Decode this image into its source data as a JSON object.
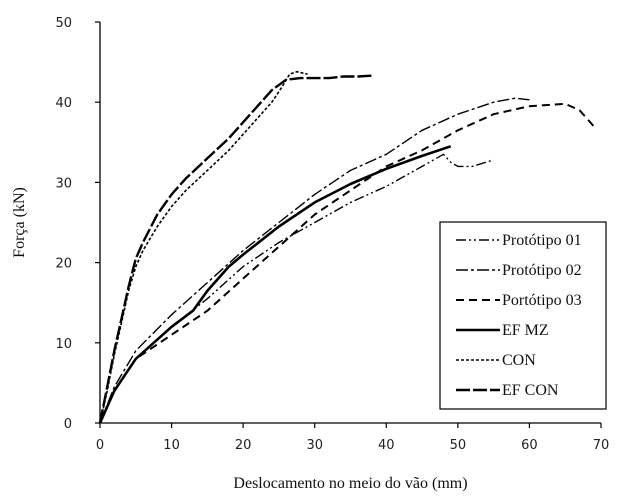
{
  "chart_data": {
    "type": "line",
    "title": "",
    "xlabel": "Deslocamento no meio do vão (mm)",
    "ylabel": "Força (kN)",
    "xlim": [
      0,
      70
    ],
    "ylim": [
      0,
      50
    ],
    "xticks": [
      0,
      10,
      20,
      30,
      40,
      50,
      60,
      70
    ],
    "yticks": [
      0,
      10,
      20,
      30,
      40,
      50
    ],
    "grid": false,
    "legend_position": "bottom-right",
    "series": [
      {
        "name": "Protótipo 01",
        "dash": "10,3,2,3,2,3",
        "width": 1.4,
        "points": [
          [
            0,
            0
          ],
          [
            2,
            4
          ],
          [
            5,
            8
          ],
          [
            10,
            12
          ],
          [
            15,
            15.5
          ],
          [
            20,
            19.5
          ],
          [
            25,
            22.5
          ],
          [
            30,
            25
          ],
          [
            35,
            27.5
          ],
          [
            40,
            29.5
          ],
          [
            45,
            32
          ],
          [
            47,
            33
          ],
          [
            48,
            33.5
          ],
          [
            49,
            32.5
          ],
          [
            50,
            32
          ],
          [
            52,
            32
          ],
          [
            55,
            32.8
          ]
        ]
      },
      {
        "name": "Protótipo 02",
        "dash": "12,3,3,3",
        "width": 1.4,
        "points": [
          [
            0,
            0
          ],
          [
            2,
            4.5
          ],
          [
            5,
            9
          ],
          [
            10,
            13.5
          ],
          [
            15,
            17.5
          ],
          [
            20,
            21.5
          ],
          [
            25,
            25
          ],
          [
            30,
            28.5
          ],
          [
            35,
            31.5
          ],
          [
            40,
            33.5
          ],
          [
            45,
            36.5
          ],
          [
            50,
            38.5
          ],
          [
            55,
            40
          ],
          [
            58,
            40.5
          ],
          [
            60,
            40.3
          ]
        ]
      },
      {
        "name": "Portótipo 03",
        "dash": "8,5",
        "width": 2,
        "points": [
          [
            0,
            0
          ],
          [
            2,
            4
          ],
          [
            5,
            8
          ],
          [
            10,
            11
          ],
          [
            15,
            14
          ],
          [
            20,
            18
          ],
          [
            25,
            22
          ],
          [
            30,
            26
          ],
          [
            35,
            29
          ],
          [
            40,
            32
          ],
          [
            45,
            34
          ],
          [
            50,
            36.5
          ],
          [
            55,
            38.5
          ],
          [
            60,
            39.5
          ],
          [
            65,
            39.8
          ],
          [
            67,
            39
          ],
          [
            69,
            37
          ]
        ]
      },
      {
        "name": "EF MZ",
        "dash": "",
        "width": 2.6,
        "points": [
          [
            0,
            0
          ],
          [
            2,
            4
          ],
          [
            5,
            8
          ],
          [
            10,
            12
          ],
          [
            13,
            14
          ],
          [
            15,
            16.5
          ],
          [
            18,
            19.5
          ],
          [
            20,
            21
          ],
          [
            25,
            24.5
          ],
          [
            30,
            27.5
          ],
          [
            35,
            29.8
          ],
          [
            40,
            31.7
          ],
          [
            45,
            33.3
          ],
          [
            49,
            34.5
          ]
        ]
      },
      {
        "name": "CON",
        "dash": "3,2",
        "width": 1.6,
        "points": [
          [
            0,
            0
          ],
          [
            1,
            4
          ],
          [
            2,
            8.5
          ],
          [
            3,
            12.5
          ],
          [
            4,
            16.5
          ],
          [
            5,
            19.5
          ],
          [
            6,
            21.5
          ],
          [
            8,
            24.5
          ],
          [
            10,
            27
          ],
          [
            12,
            29
          ],
          [
            15,
            31.5
          ],
          [
            18,
            34
          ],
          [
            20,
            36
          ],
          [
            22,
            38
          ],
          [
            24,
            40
          ],
          [
            25.5,
            42
          ],
          [
            26.5,
            43.5
          ],
          [
            27.5,
            43.8
          ],
          [
            29,
            43.5
          ]
        ]
      },
      {
        "name": "EF CON",
        "dash": "14,3",
        "width": 2.4,
        "points": [
          [
            0,
            0
          ],
          [
            1,
            4.5
          ],
          [
            2,
            9
          ],
          [
            3,
            13
          ],
          [
            4,
            17
          ],
          [
            5,
            20.5
          ],
          [
            6,
            22.5
          ],
          [
            8,
            26
          ],
          [
            10,
            28.5
          ],
          [
            12,
            30.5
          ],
          [
            15,
            33
          ],
          [
            18,
            35.5
          ],
          [
            20,
            37.5
          ],
          [
            22,
            39.5
          ],
          [
            24,
            41.5
          ],
          [
            26,
            42.8
          ],
          [
            28,
            43
          ],
          [
            30,
            43
          ],
          [
            32,
            43
          ],
          [
            34,
            43.2
          ],
          [
            36,
            43.2
          ],
          [
            38,
            43.3
          ]
        ]
      }
    ]
  }
}
